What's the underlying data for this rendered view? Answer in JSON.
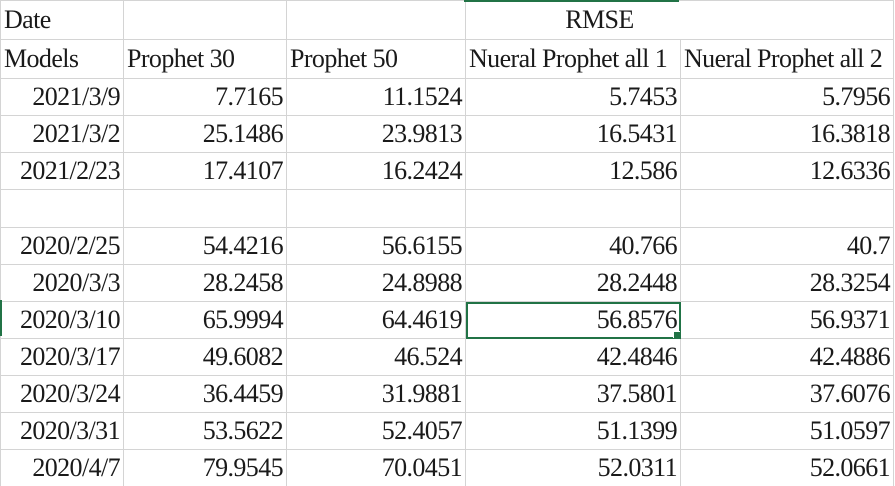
{
  "sheet": {
    "header": {
      "date_label": "Date",
      "group_label": "RMSE",
      "models_label": "Models",
      "columns": [
        "Prophet 30",
        "Prophet 50",
        "Nueral Prophet all 1",
        "Nueral Prophet all 2"
      ]
    },
    "rows": [
      {
        "date": "2021/3/9",
        "values": [
          "7.7165",
          "11.1524",
          "5.7453",
          "5.7956"
        ]
      },
      {
        "date": "2021/3/2",
        "values": [
          "25.1486",
          "23.9813",
          "16.5431",
          "16.3818"
        ]
      },
      {
        "date": "2021/2/23",
        "values": [
          "17.4107",
          "16.2424",
          "12.586",
          "12.6336"
        ]
      },
      {
        "date": "",
        "values": [
          "",
          "",
          "",
          ""
        ]
      },
      {
        "date": "2020/2/25",
        "values": [
          "54.4216",
          "56.6155",
          "40.766",
          "40.7"
        ]
      },
      {
        "date": "2020/3/3",
        "values": [
          "28.2458",
          "24.8988",
          "28.2448",
          "28.3254"
        ]
      },
      {
        "date": "2020/3/10",
        "values": [
          "65.9994",
          "64.4619",
          "56.8576",
          "56.9371"
        ]
      },
      {
        "date": "2020/3/17",
        "values": [
          "49.6082",
          "46.524",
          "42.4846",
          "42.4886"
        ]
      },
      {
        "date": "2020/3/24",
        "values": [
          "36.4459",
          "31.9881",
          "37.5801",
          "37.6076"
        ]
      },
      {
        "date": "2020/3/31",
        "values": [
          "53.5622",
          "52.4057",
          "51.1399",
          "51.0597"
        ]
      },
      {
        "date": "2020/4/7",
        "values": [
          "79.9545",
          "70.0451",
          "52.0311",
          "52.0661"
        ]
      }
    ],
    "selection_color": "#217346",
    "gridline_color": "#d4d4d4"
  }
}
